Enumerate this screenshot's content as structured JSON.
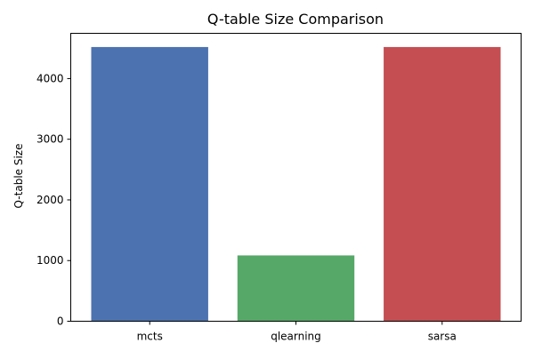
{
  "chart_data": {
    "type": "bar",
    "title": "Q-table Size Comparison",
    "xlabel": "",
    "ylabel": "Q-table Size",
    "categories": [
      "mcts",
      "qlearning",
      "sarsa"
    ],
    "values": [
      4520,
      1085,
      4520
    ],
    "colors": [
      "#4c72b0",
      "#55a868",
      "#c44e52"
    ],
    "ylim": [
      0,
      4746
    ],
    "yticks": [
      0,
      1000,
      2000,
      3000,
      4000
    ],
    "grid": false,
    "legend": "none"
  }
}
